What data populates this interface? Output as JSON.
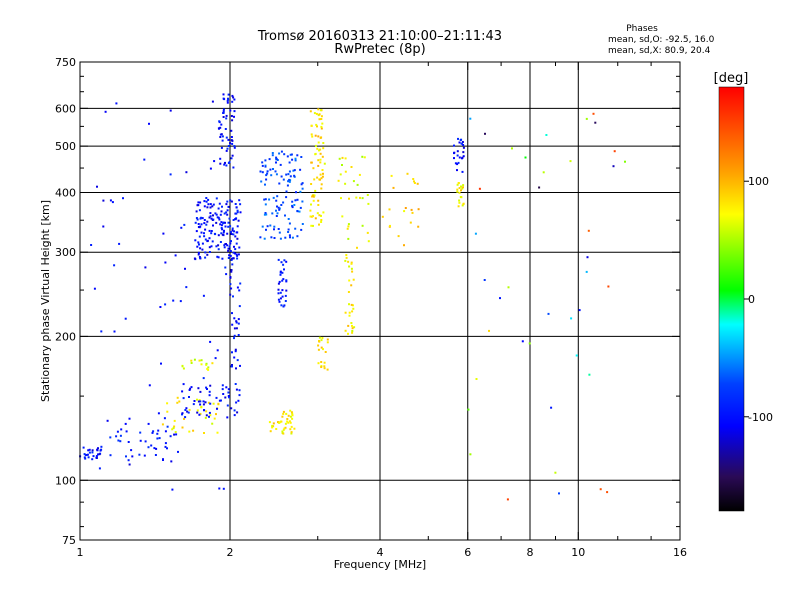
{
  "chart_data": {
    "type": "scatter",
    "title": "Tromsø 20160313 21:10:00–21:11:43",
    "subtitle": "RwPretec (8p)",
    "xlabel": "Frequency [MHz]",
    "ylabel": "Stationary phase Virtual Height [km]",
    "x_scale": "log",
    "y_scale": "log",
    "xlim": [
      1,
      16
    ],
    "ylim": [
      75,
      750
    ],
    "x_ticks": [
      1,
      2,
      4,
      6,
      8,
      10,
      16
    ],
    "y_ticks": [
      75,
      100,
      200,
      300,
      400,
      500,
      600,
      750
    ],
    "x_minor_ticks": [
      3,
      5,
      7,
      9,
      12,
      14
    ],
    "y_minor_ticks": [
      80,
      90,
      150,
      250,
      350,
      450,
      550,
      650,
      700
    ],
    "x_gridlines": [
      2,
      4,
      6,
      8,
      10
    ],
    "y_gridlines": [
      100,
      200,
      300,
      400,
      500,
      600
    ],
    "grid": true,
    "legend": {
      "title": "Phases",
      "line1": "mean, sd,O: -92.5, 16.0",
      "line2": "mean, sd,X:  80.9, 20.4"
    },
    "colorbar": {
      "title": "[deg]",
      "range": [
        -180,
        180
      ],
      "ticks": [
        100,
        0,
        -100
      ],
      "colors": [
        "#ff0000",
        "#ffa500",
        "#ffff00",
        "#00ff00",
        "#00ffff",
        "#0000ff",
        "#2a0a55",
        "#000000"
      ]
    },
    "clusters": [
      {
        "x": [
          1.0,
          1.1
        ],
        "y": [
          110,
          118
        ],
        "phase": -100,
        "n": 25
      },
      {
        "x": [
          1.1,
          1.6
        ],
        "y": [
          110,
          135
        ],
        "phase": -95,
        "n": 45
      },
      {
        "x": [
          1.45,
          1.9
        ],
        "y": [
          125,
          150
        ],
        "phase": 80,
        "n": 35
      },
      {
        "x": [
          1.6,
          2.1
        ],
        "y": [
          135,
          160
        ],
        "phase": -100,
        "n": 60
      },
      {
        "x": [
          1.6,
          1.85
        ],
        "y": [
          170,
          180
        ],
        "phase": 70,
        "n": 15
      },
      {
        "x": [
          1.7,
          2.1
        ],
        "y": [
          290,
          390
        ],
        "phase": -100,
        "n": 170
      },
      {
        "x": [
          1.9,
          2.05
        ],
        "y": [
          450,
          650
        ],
        "phase": -100,
        "n": 60
      },
      {
        "x": [
          2.0,
          2.1
        ],
        "y": [
          170,
          300
        ],
        "phase": -100,
        "n": 40
      },
      {
        "x": [
          2.3,
          2.8
        ],
        "y": [
          320,
          490
        ],
        "phase": -70,
        "n": 120
      },
      {
        "x": [
          2.5,
          2.6
        ],
        "y": [
          230,
          290
        ],
        "phase": -95,
        "n": 30
      },
      {
        "x": [
          2.4,
          2.7
        ],
        "y": [
          125,
          140
        ],
        "phase": 80,
        "n": 40
      },
      {
        "x": [
          2.9,
          3.1
        ],
        "y": [
          340,
          600
        ],
        "phase": 85,
        "n": 80
      },
      {
        "x": [
          3.0,
          3.15
        ],
        "y": [
          170,
          200
        ],
        "phase": 80,
        "n": 20
      },
      {
        "x": [
          3.4,
          3.55
        ],
        "y": [
          200,
          300
        ],
        "phase": 80,
        "n": 30
      },
      {
        "x": [
          3.3,
          3.8
        ],
        "y": [
          300,
          480
        ],
        "phase": 70,
        "n": 30
      },
      {
        "x": [
          4.0,
          4.8
        ],
        "y": [
          310,
          440
        ],
        "phase": 90,
        "n": 20
      },
      {
        "x": [
          5.7,
          5.9
        ],
        "y": [
          370,
          420
        ],
        "phase": 80,
        "n": 20
      },
      {
        "x": [
          5.6,
          5.9
        ],
        "y": [
          430,
          520
        ],
        "phase": -100,
        "n": 25
      },
      {
        "x": [
          6.0,
          12.5
        ],
        "y": [
          90,
          620
        ],
        "phase": 0,
        "n": 40
      },
      {
        "x": [
          1.05,
          2.0
        ],
        "y": [
          95,
          620
        ],
        "phase": -100,
        "n": 60
      }
    ]
  }
}
